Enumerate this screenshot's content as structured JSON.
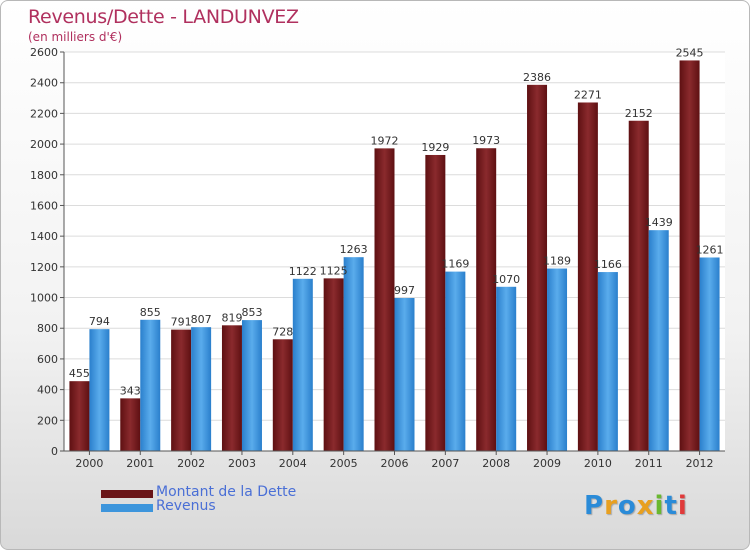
{
  "title": "Revenus/Dette - LANDUNVEZ",
  "subtitle": "(en milliers d'€)",
  "legend": {
    "debt_label": "Montant de la Dette",
    "revenue_label": "Revenus"
  },
  "logo": {
    "letters": [
      "P",
      "r",
      "o",
      "x",
      "i",
      "t",
      "i"
    ],
    "colors": [
      "#2a8bd8",
      "#e8a020",
      "#2a8bd8",
      "#e8a020",
      "#6ab830",
      "#2a8bd8",
      "#e03a3a"
    ]
  },
  "colors": {
    "debt": "#7a1c1f",
    "revenue": "#3d95dc",
    "title": "#b0305e"
  },
  "chart_data": {
    "type": "bar",
    "categories": [
      "2000",
      "2001",
      "2002",
      "2003",
      "2004",
      "2005",
      "2006",
      "2007",
      "2008",
      "2009",
      "2010",
      "2011",
      "2012"
    ],
    "series": [
      {
        "name": "Montant de la Dette",
        "values": [
          455,
          343,
          791,
          819,
          728,
          1125,
          1972,
          1929,
          1973,
          2386,
          2271,
          2152,
          2545
        ]
      },
      {
        "name": "Revenus",
        "values": [
          794,
          855,
          807,
          853,
          1122,
          1263,
          997,
          1169,
          1070,
          1189,
          1166,
          1439,
          1261
        ]
      }
    ],
    "title": "Revenus/Dette - LANDUNVEZ",
    "ylabel": "(en milliers d'€)",
    "ylim": [
      0,
      2600
    ],
    "yticks": [
      0,
      200,
      400,
      600,
      800,
      1000,
      1200,
      1400,
      1600,
      1800,
      2000,
      2200,
      2400,
      2600
    ],
    "grid": true,
    "legend_position": "bottom-left"
  }
}
